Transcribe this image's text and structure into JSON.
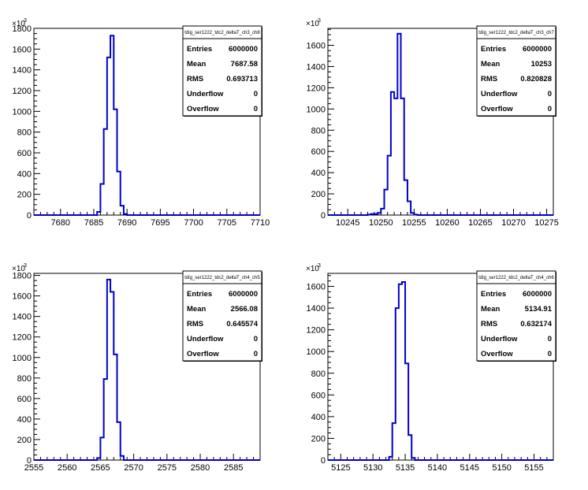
{
  "chart_data": [
    {
      "type": "histogram",
      "name": "tdig_ser1222_tdc2_deltaT_ch3_ch8",
      "xlim": [
        7676,
        7710
      ],
      "ylim": [
        0,
        1800000
      ],
      "y_multiplier_label": "×10",
      "y_multiplier_exp": "3",
      "x_ticks": [
        7680,
        7685,
        7690,
        7695,
        7700,
        7705,
        7710
      ],
      "y_ticks": [
        0,
        200,
        400,
        600,
        800,
        1000,
        1200,
        1400,
        1600,
        1800
      ],
      "bin_width": 0.5,
      "bins": [
        {
          "x0": 7685.5,
          "y": 30000
        },
        {
          "x0": 7686.0,
          "y": 300000
        },
        {
          "x0": 7686.5,
          "y": 830000
        },
        {
          "x0": 7687.0,
          "y": 1520000
        },
        {
          "x0": 7687.5,
          "y": 1730000
        },
        {
          "x0": 7688.0,
          "y": 1020000
        },
        {
          "x0": 7688.5,
          "y": 420000
        },
        {
          "x0": 7689.0,
          "y": 90000
        },
        {
          "x0": 7689.5,
          "y": 10000
        }
      ],
      "stats": {
        "title": "tdig_ser1222_tdc2_deltaT_ch3_ch8",
        "rows": [
          {
            "label": "Entries",
            "value": "6000000"
          },
          {
            "label": "Mean",
            "value": "7687.58"
          },
          {
            "label": "RMS",
            "value": "0.693713"
          },
          {
            "label": "Underflow",
            "value": "0"
          },
          {
            "label": "Overflow",
            "value": "0"
          }
        ]
      }
    },
    {
      "type": "histogram",
      "name": "tdig_ser1222_tdc2_deltaT_ch3_ch7",
      "xlim": [
        10242,
        10276
      ],
      "ylim": [
        0,
        1760000
      ],
      "y_multiplier_label": "×10",
      "y_multiplier_exp": "3",
      "x_ticks": [
        10245,
        10250,
        10255,
        10260,
        10265,
        10270,
        10275
      ],
      "y_ticks": [
        0,
        200,
        400,
        600,
        800,
        1000,
        1200,
        1400,
        1600
      ],
      "bin_width": 0.5,
      "bins": [
        {
          "x0": 10248.0,
          "y": 5000
        },
        {
          "x0": 10248.5,
          "y": 10000
        },
        {
          "x0": 10249.0,
          "y": 10000
        },
        {
          "x0": 10249.5,
          "y": 20000
        },
        {
          "x0": 10250.0,
          "y": 60000
        },
        {
          "x0": 10250.5,
          "y": 240000
        },
        {
          "x0": 10251.0,
          "y": 560000
        },
        {
          "x0": 10251.5,
          "y": 1160000
        },
        {
          "x0": 10252.0,
          "y": 1100000
        },
        {
          "x0": 10252.5,
          "y": 1710000
        },
        {
          "x0": 10253.0,
          "y": 1100000
        },
        {
          "x0": 10253.5,
          "y": 330000
        },
        {
          "x0": 10254.0,
          "y": 130000
        },
        {
          "x0": 10254.5,
          "y": 20000
        },
        {
          "x0": 10255.0,
          "y": 5000
        }
      ],
      "stats": {
        "title": "tdig_ser1222_tdc2_deltaT_ch3_ch7",
        "rows": [
          {
            "label": "Entries",
            "value": "6000000"
          },
          {
            "label": "Mean",
            "value": "10253"
          },
          {
            "label": "RMS",
            "value": "0.820828"
          },
          {
            "label": "Underflow",
            "value": "0"
          },
          {
            "label": "Overflow",
            "value": "0"
          }
        ]
      }
    },
    {
      "type": "histogram",
      "name": "tdig_ser1222_tdc2_deltaT_ch4_ch5",
      "xlim": [
        2555,
        2589
      ],
      "ylim": [
        0,
        1820000
      ],
      "y_multiplier_label": "×10",
      "y_multiplier_exp": "3",
      "x_ticks": [
        2555,
        2560,
        2565,
        2570,
        2575,
        2580,
        2585
      ],
      "y_ticks": [
        0,
        200,
        400,
        600,
        800,
        1000,
        1200,
        1400,
        1600,
        1800
      ],
      "bin_width": 0.5,
      "bins": [
        {
          "x0": 2564.5,
          "y": 20000
        },
        {
          "x0": 2565.0,
          "y": 220000
        },
        {
          "x0": 2565.5,
          "y": 790000
        },
        {
          "x0": 2566.0,
          "y": 1760000
        },
        {
          "x0": 2566.5,
          "y": 1640000
        },
        {
          "x0": 2567.0,
          "y": 1030000
        },
        {
          "x0": 2567.5,
          "y": 370000
        },
        {
          "x0": 2568.0,
          "y": 40000
        }
      ],
      "stats": {
        "title": "tdig_ser1222_tdc2_deltaT_ch4_ch5",
        "rows": [
          {
            "label": "Entries",
            "value": "6000000"
          },
          {
            "label": "Mean",
            "value": "2566.08"
          },
          {
            "label": "RMS",
            "value": "0.645574"
          },
          {
            "label": "Underflow",
            "value": "0"
          },
          {
            "label": "Overflow",
            "value": "0"
          }
        ]
      }
    },
    {
      "type": "histogram",
      "name": "tdig_ser1222_tdc2_deltaT_ch4_ch6",
      "xlim": [
        5123,
        5158
      ],
      "ylim": [
        0,
        1720000
      ],
      "y_multiplier_label": "×10",
      "y_multiplier_exp": "3",
      "x_ticks": [
        5125,
        5130,
        5135,
        5140,
        5145,
        5150,
        5155
      ],
      "y_ticks": [
        0,
        200,
        400,
        600,
        800,
        1000,
        1200,
        1400,
        1600
      ],
      "bin_width": 0.5,
      "bins": [
        {
          "x0": 5132.5,
          "y": 30000
        },
        {
          "x0": 5133.0,
          "y": 340000
        },
        {
          "x0": 5133.5,
          "y": 1400000
        },
        {
          "x0": 5134.0,
          "y": 1620000
        },
        {
          "x0": 5134.5,
          "y": 1640000
        },
        {
          "x0": 5135.0,
          "y": 890000
        },
        {
          "x0": 5135.5,
          "y": 230000
        },
        {
          "x0": 5136.0,
          "y": 20000
        }
      ],
      "stats": {
        "title": "tdig_ser1222_tdc2_deltaT_ch4_ch6",
        "rows": [
          {
            "label": "Entries",
            "value": "6000000"
          },
          {
            "label": "Mean",
            "value": "5134.91"
          },
          {
            "label": "RMS",
            "value": "0.632174"
          },
          {
            "label": "Underflow",
            "value": "0"
          },
          {
            "label": "Overflow",
            "value": "0"
          }
        ]
      }
    }
  ],
  "colors": {
    "line": "#0000cc",
    "axis": "#000000",
    "background": "#ffffff"
  }
}
